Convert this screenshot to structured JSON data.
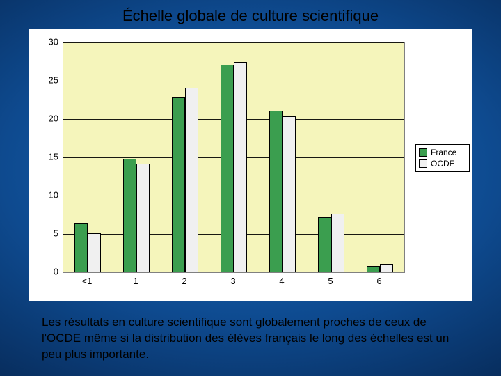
{
  "title": "Échelle globale de culture scientifique",
  "caption": "Les résultats en culture scientifique sont globalement proches de ceux de l'OCDE même si la distribution des élèves français le long des échelles est un peu plus importante.",
  "chart": {
    "type": "bar",
    "background_color": "#ffffff",
    "plot_background_color": "#f5f5bb",
    "grid_color": "#000000",
    "categories": [
      "<1",
      "1",
      "2",
      "3",
      "4",
      "5",
      "6"
    ],
    "series": [
      {
        "name": "France",
        "color": "#3b9e4f",
        "values": [
          6.5,
          14.8,
          22.8,
          27.1,
          21.1,
          7.2,
          0.8
        ]
      },
      {
        "name": "OCDE",
        "color": "#f0f0f0",
        "values": [
          5.1,
          14.2,
          24.1,
          27.5,
          20.4,
          7.6,
          1.1
        ]
      }
    ],
    "ylim": [
      0,
      30
    ],
    "ytick_step": 5,
    "y_ticks": [
      "0",
      "5",
      "10",
      "15",
      "20",
      "25",
      "30"
    ],
    "label_fontsize": 13,
    "bar_group_width": 0.55,
    "legend": {
      "items": [
        "France",
        "OCDE"
      ]
    }
  }
}
